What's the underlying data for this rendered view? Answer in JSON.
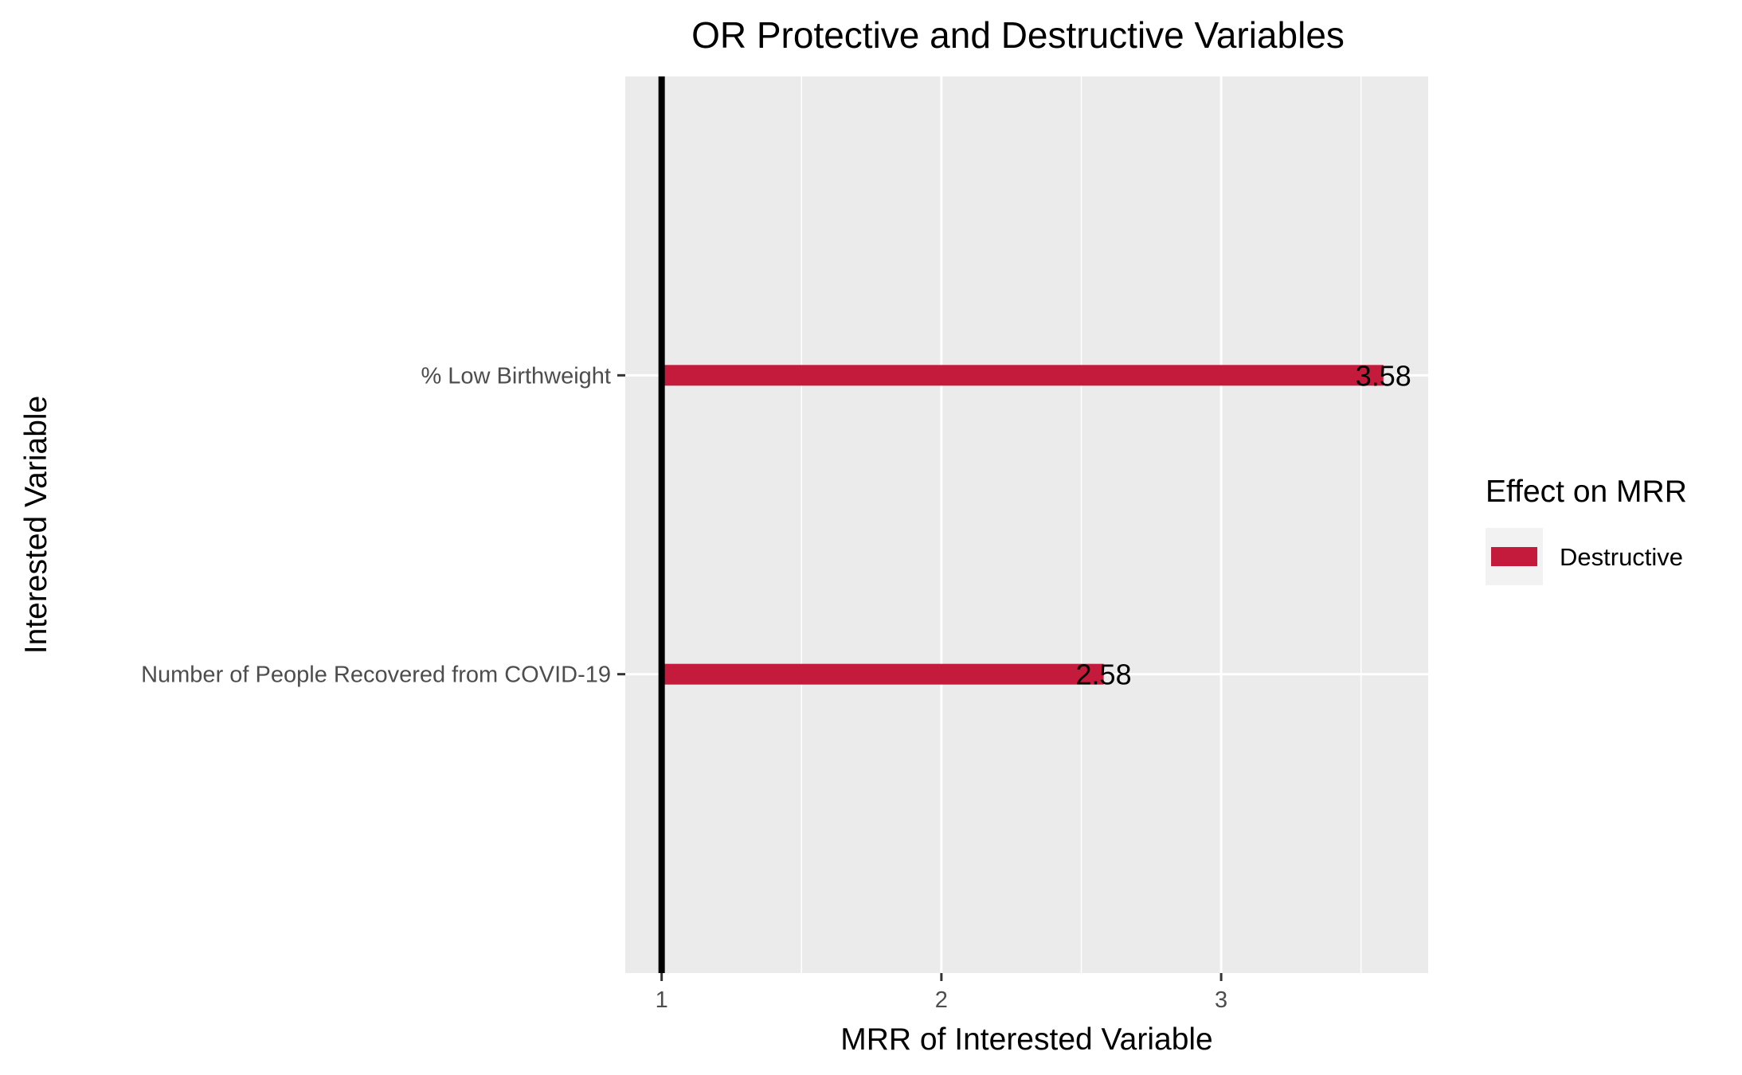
{
  "chart_data": {
    "type": "bar",
    "orientation": "horizontal",
    "title": "OR Protective and Destructive Variables",
    "xlabel": "MRR of Interested Variable",
    "ylabel": "Interested Variable",
    "categories": [
      "% Low Birthweight",
      "Number of People Recovered from COVID-19"
    ],
    "series": [
      {
        "name": "Destructive",
        "color": "#c41a3b",
        "values": [
          3.58,
          2.58
        ],
        "labels": [
          "3.58",
          "2.58"
        ]
      }
    ],
    "baseline": 1,
    "xlim": [
      0.87,
      3.74
    ],
    "x_ticks": [
      1,
      2,
      3
    ],
    "x_tick_labels": [
      "1",
      "2",
      "3"
    ],
    "grid": true,
    "legend": {
      "title": "Effect on MRR",
      "position": "right",
      "entries": [
        {
          "label": "Destructive",
          "color": "#c41a3b"
        }
      ]
    },
    "panel_background": "#ebebeb",
    "grid_color": "#ffffff"
  }
}
